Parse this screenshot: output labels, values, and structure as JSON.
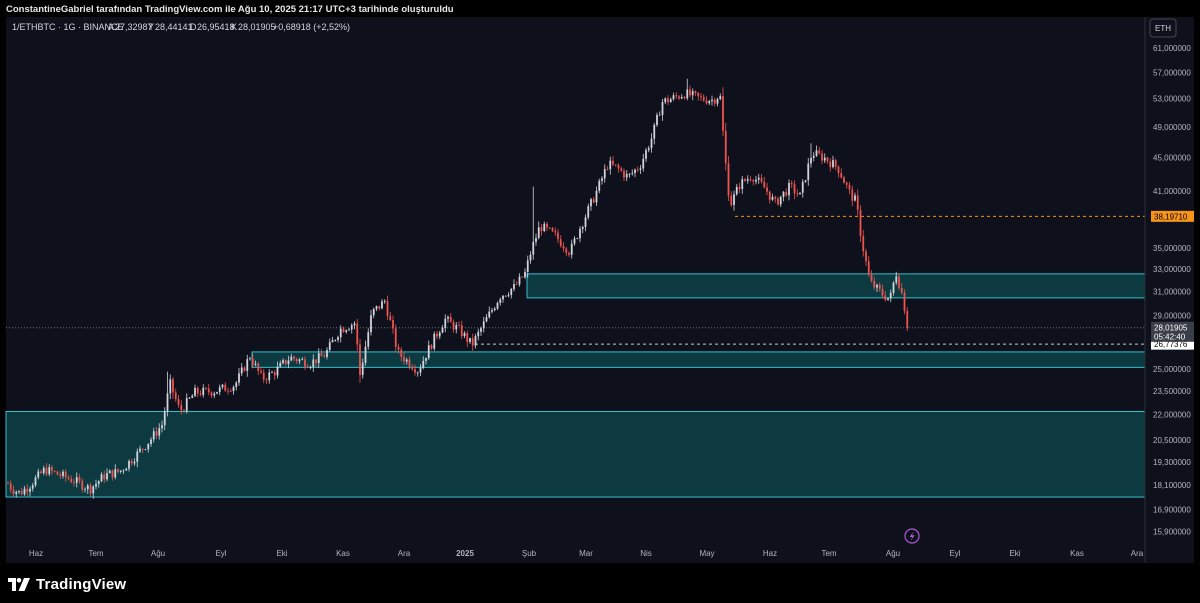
{
  "attribution": "ConstantineGabriel tarafından TradingView.com ile Ağu 10, 2025 21:17 UTC+3 tarihinde oluşturuldu",
  "brand": "TradingView",
  "colors": {
    "background": "#0e111b",
    "up": "#d1d4dc",
    "down": "#ef5350",
    "zone_fill": "#0c3a40",
    "zone_stroke": "#34c0ce",
    "price_line": "#f7931a"
  },
  "chart_data": {
    "type": "candlestick",
    "header": {
      "symbol": "1/ETHBTC · 1G · BINANCE",
      "open_label": "A",
      "open": "27,32987",
      "high_label": "Y",
      "high": "28,44141",
      "low_label": "D",
      "low": "26,95418",
      "close_label": "K",
      "close": "28,01905",
      "change": "+0,68918 (+2,52%)"
    },
    "currency_label": "ETH",
    "y_axis": {
      "scale": "log",
      "ylim": [
        15.4,
        66.5
      ],
      "tick_labels": [
        "61,000000",
        "57,000000",
        "53,000000",
        "49,000000",
        "45,000000",
        "41,000000",
        "35,000000",
        "33,000000",
        "31,000000",
        "29,000000",
        "25,000000",
        "23,500000",
        "22,000000",
        "20,500000",
        "19,300000",
        "18,100000",
        "16,900000",
        "15,900000"
      ],
      "tick_values": [
        61,
        57,
        53,
        49,
        45,
        41,
        35,
        33,
        31,
        29,
        25,
        23.5,
        22,
        20.5,
        19.3,
        18.1,
        16.9,
        15.9
      ]
    },
    "x_axis": {
      "labels": [
        "Haz",
        "Tem",
        "Ağu",
        "Eyl",
        "Eki",
        "Kas",
        "Ara",
        "2025",
        "Şub",
        "Mar",
        "Nis",
        "May",
        "Haz",
        "Tem",
        "Ağu",
        "Eyl",
        "Eki",
        "Kas",
        "Ara"
      ],
      "bold": [
        false,
        false,
        false,
        false,
        false,
        false,
        false,
        true,
        false,
        false,
        false,
        false,
        false,
        false,
        false,
        false,
        false,
        false,
        false
      ]
    },
    "price_path": [
      [
        0,
        21.3
      ],
      [
        5,
        18.4
      ],
      [
        12,
        17.9
      ],
      [
        20,
        17.7
      ],
      [
        30,
        18.1
      ],
      [
        45,
        18.9
      ],
      [
        60,
        18.6
      ],
      [
        75,
        18.3
      ],
      [
        90,
        17.9
      ],
      [
        105,
        18.6
      ],
      [
        120,
        18.8
      ],
      [
        135,
        19.6
      ],
      [
        150,
        20.5
      ],
      [
        162,
        21.4
      ],
      [
        170,
        24.0
      ],
      [
        180,
        22.2
      ],
      [
        195,
        23.4
      ],
      [
        215,
        23.5
      ],
      [
        235,
        23.9
      ],
      [
        250,
        25.9
      ],
      [
        262,
        24.3
      ],
      [
        275,
        24.8
      ],
      [
        290,
        25.8
      ],
      [
        310,
        25.4
      ],
      [
        325,
        26.0
      ],
      [
        340,
        27.9
      ],
      [
        355,
        28.4
      ],
      [
        360,
        24.6
      ],
      [
        372,
        29.2
      ],
      [
        385,
        30.2
      ],
      [
        398,
        26.1
      ],
      [
        410,
        25.4
      ],
      [
        418,
        24.9
      ],
      [
        430,
        26.6
      ],
      [
        445,
        28.7
      ],
      [
        460,
        27.8
      ],
      [
        472,
        26.7
      ],
      [
        485,
        28.5
      ],
      [
        500,
        30.6
      ],
      [
        515,
        31.4
      ],
      [
        525,
        32.6
      ],
      [
        532,
        35.0
      ],
      [
        540,
        37.2
      ],
      [
        555,
        36.2
      ],
      [
        570,
        34.6
      ],
      [
        580,
        37.0
      ],
      [
        595,
        40.5
      ],
      [
        608,
        44.2
      ],
      [
        618,
        43.6
      ],
      [
        628,
        42.6
      ],
      [
        640,
        44.0
      ],
      [
        652,
        47.6
      ],
      [
        662,
        52.5
      ],
      [
        672,
        53.0
      ],
      [
        685,
        53.8
      ],
      [
        700,
        53.0
      ],
      [
        713,
        52.8
      ],
      [
        720,
        53.6
      ],
      [
        725,
        45.0
      ],
      [
        730,
        39.4
      ],
      [
        740,
        41.8
      ],
      [
        752,
        42.8
      ],
      [
        765,
        41.3
      ],
      [
        775,
        39.6
      ],
      [
        790,
        41.5
      ],
      [
        800,
        40.4
      ],
      [
        812,
        45.6
      ],
      [
        825,
        44.9
      ],
      [
        838,
        43.7
      ],
      [
        850,
        40.7
      ],
      [
        856,
        39.8
      ],
      [
        862,
        35.5
      ],
      [
        870,
        31.8
      ],
      [
        882,
        30.8
      ],
      [
        890,
        30.3
      ],
      [
        896,
        32.7
      ],
      [
        903,
        30.5
      ],
      [
        909,
        27.35
      ]
    ],
    "zones": [
      {
        "x_start": 527,
        "top": 32.55,
        "bottom": 30.45
      },
      {
        "x_start": 252,
        "top": 26.2,
        "bottom": 25.1
      },
      {
        "x_start": 6,
        "top": 22.2,
        "bottom": 17.5
      }
    ],
    "levels": [
      {
        "value": 38.1971,
        "label": "38,19710",
        "x_start": 735,
        "style": "dashed",
        "color": "#f7931a",
        "badge_bg": "#f7931a",
        "badge_fg": "#000000"
      },
      {
        "value": 26.77376,
        "label": "26,77376",
        "x_start": 475,
        "style": "dashed",
        "color": "#c8c8c8",
        "badge_bg": "#ffffff",
        "badge_fg": "#000000"
      },
      {
        "value": 28.01905,
        "label": "28,01905",
        "sublabel": "05:42:40",
        "x_start": 6,
        "style": "dotted",
        "color": "#6b7080",
        "badge_bg": "#3a3e48",
        "badge_fg": "#ffffff"
      }
    ]
  }
}
